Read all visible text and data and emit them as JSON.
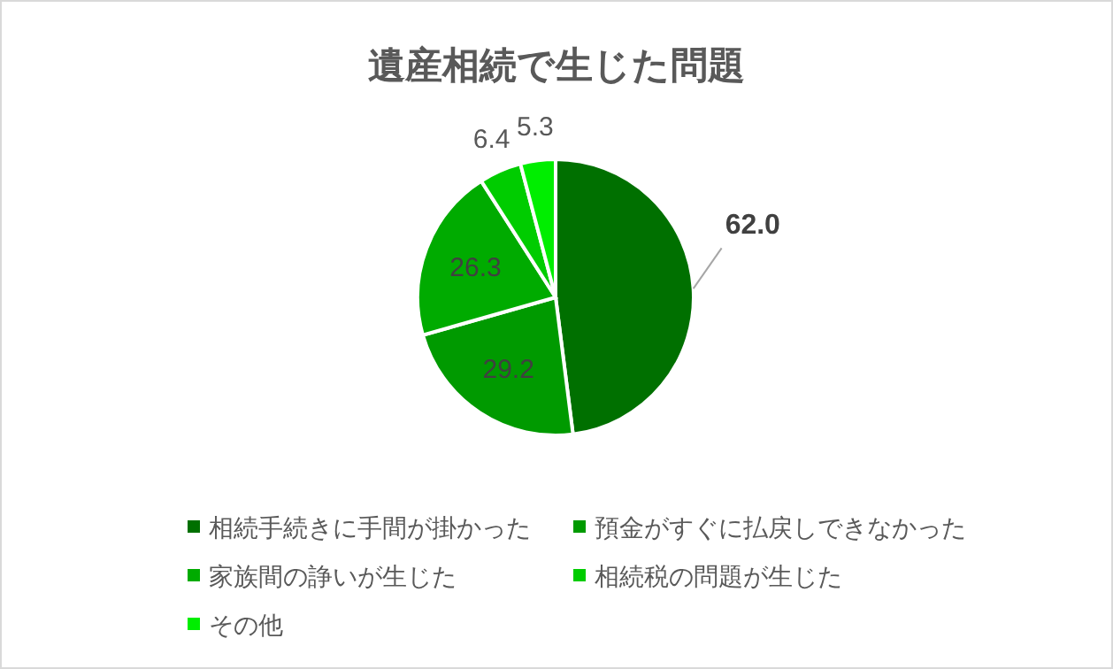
{
  "chart_data": {
    "type": "pie",
    "title": "遺産相続で生じた問題",
    "categories": [
      "相続手続きに手間が掛かった",
      "預金がすぐに払戻しできなかった",
      "家族間の諍いが生じた",
      "相続税の問題が生じた",
      "その他"
    ],
    "values": [
      62.0,
      29.2,
      26.3,
      6.4,
      5.3
    ],
    "colors": [
      "#007000",
      "#009a00",
      "#00ab00",
      "#00cc00",
      "#00ee00"
    ],
    "value_labels": [
      "62.0",
      "29.2",
      "26.3",
      "6.4",
      "5.3"
    ],
    "legend": "bottom"
  }
}
